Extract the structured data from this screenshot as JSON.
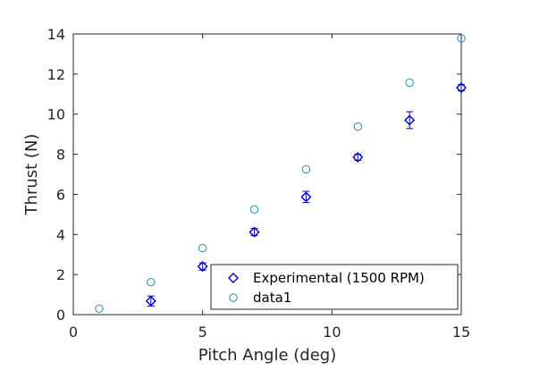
{
  "chart_data": {
    "type": "scatter",
    "title": "",
    "xlabel": "Pitch Angle (deg)",
    "ylabel": "Thrust (N)",
    "xlim": [
      0,
      15
    ],
    "ylim": [
      0,
      14
    ],
    "xticks": [
      0,
      5,
      10,
      15
    ],
    "yticks": [
      0,
      2,
      4,
      6,
      8,
      10,
      12,
      14
    ],
    "grid": false,
    "legend_position": "bottom-right",
    "series": [
      {
        "name": "Experimental (1500 RPM)",
        "color": "#0000cd",
        "marker": "diamond",
        "error_bars": true,
        "x": [
          3,
          5,
          7,
          9,
          11,
          13,
          15
        ],
        "y": [
          0.68,
          2.4,
          4.12,
          5.87,
          7.85,
          9.7,
          11.32
        ],
        "yerr": [
          0.25,
          0.18,
          0.18,
          0.28,
          0.15,
          0.42,
          0.15
        ]
      },
      {
        "name": "data1",
        "color": "#1e90b4",
        "marker": "circle",
        "error_bars": false,
        "x": [
          1,
          3,
          5,
          7,
          9,
          11,
          13,
          15
        ],
        "y": [
          0.3,
          1.62,
          3.32,
          5.25,
          7.25,
          9.38,
          11.57,
          13.78
        ]
      }
    ]
  }
}
